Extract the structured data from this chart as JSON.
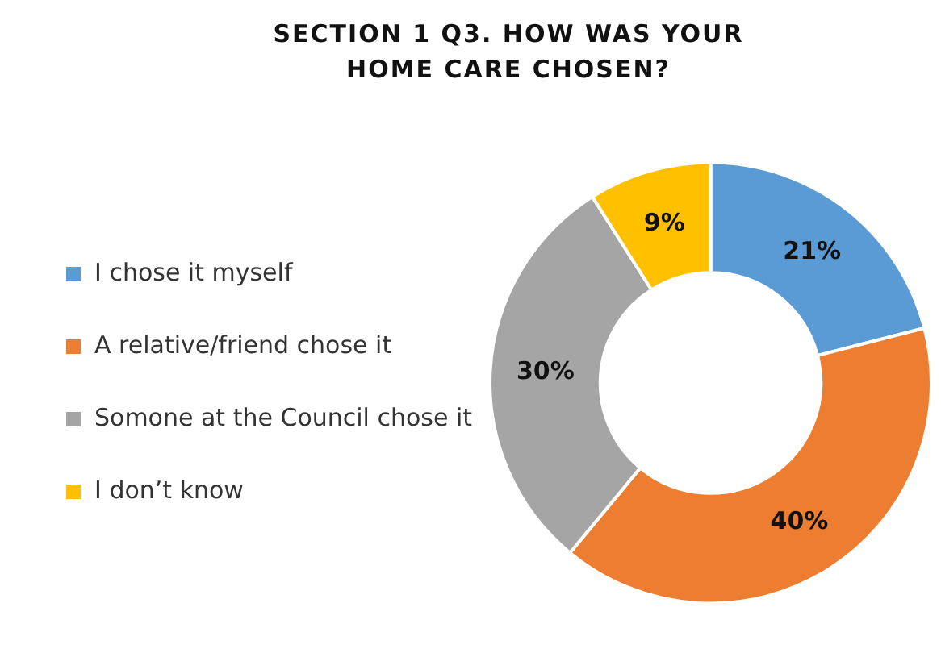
{
  "chart_data": {
    "type": "donut",
    "title": "SECTION 1 Q3. HOW WAS YOUR HOME CARE CHOSEN?",
    "categories": [
      "I chose it myself",
      "A relative/friend chose it",
      "Somone at the Council chose it",
      "I don’t know"
    ],
    "values": [
      21,
      40,
      30,
      9
    ],
    "colors": [
      "#5b9bd5",
      "#ed7d31",
      "#a5a5a5",
      "#ffc000"
    ],
    "value_labels": [
      "21%",
      "40%",
      "30%",
      "9%"
    ],
    "legend": "left"
  }
}
